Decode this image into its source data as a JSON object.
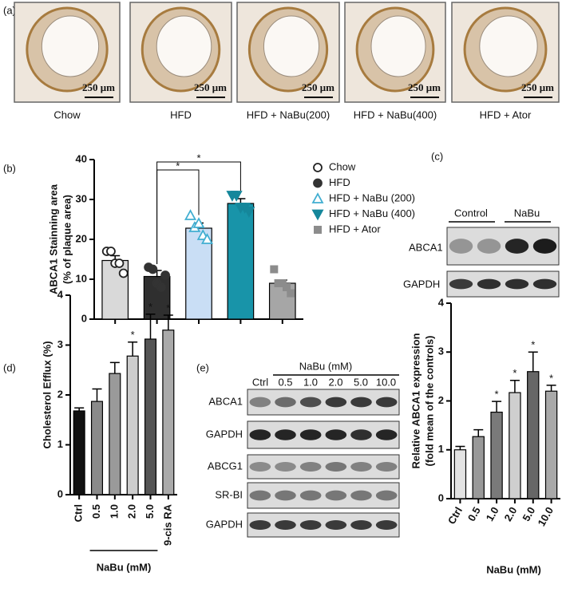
{
  "figure": {
    "panels": [
      "(a)",
      "(b)",
      "(c)",
      "(d)",
      "(e)"
    ],
    "a": {
      "labels": [
        "Chow",
        "HFD",
        "HFD + NaBu(200)",
        "HFD + NaBu(400)",
        "HFD + Ator"
      ],
      "scale": "250 μm"
    },
    "c": {
      "groups": [
        "Control",
        "NaBu"
      ],
      "rows": [
        "ABCA1",
        "GAPDH"
      ]
    },
    "e": {
      "treatment": "NaBu (mM)",
      "lanes": [
        "Ctrl",
        "0.5",
        "1.0",
        "2.0",
        "5.0",
        "10.0"
      ],
      "rows": [
        "ABCA1",
        "GAPDH",
        "ABCG1",
        "SR-BI",
        "GAPDH"
      ]
    }
  },
  "chart_data": [
    {
      "type": "bar",
      "y_label": "ABCA1 Stainning area",
      "y_sublabel": "(% of plaque area)",
      "categories": [
        null,
        null,
        null,
        null,
        null
      ],
      "values": [
        14.7,
        10.7,
        22.8,
        29.0,
        9.0
      ],
      "errors": [
        1.2,
        1.5,
        1.3,
        1.2,
        0.8
      ],
      "points": [
        [
          17,
          17,
          14,
          14,
          11.5
        ],
        [
          13,
          12.5,
          9,
          8,
          11
        ],
        [
          26,
          23,
          24,
          21,
          20
        ],
        [
          31,
          31,
          28,
          28,
          27
        ],
        [
          12.5,
          9,
          9,
          8,
          6.5
        ]
      ],
      "colors": [
        "#d9d9d9",
        "#2f2f2f",
        "#c9def5",
        "#1894a9",
        "#a6a6a6"
      ],
      "markers": [
        "circle-open",
        "circle",
        "triangle-open",
        "triangle-down",
        "square"
      ],
      "marker_colors": [
        "#222222",
        "#333333",
        "#41aed1",
        "#15879b",
        "#8c8c8c"
      ],
      "legend": [
        "Chow",
        "HFD",
        "HFD + NaBu (200)",
        "HFD + NaBu (400)",
        "HFD + Ator"
      ],
      "annotations": [
        "*",
        "*"
      ],
      "ylim": [
        0,
        40
      ],
      "yticks": [
        0,
        10,
        20,
        30,
        40
      ]
    },
    {
      "type": "bar",
      "y_label": "Cholesterol Efflux (%)",
      "x_label": "NaBu (mM)",
      "categories": [
        "Ctrl",
        "0.5",
        "1.0",
        "2.0",
        "5.0",
        "9-cis RA"
      ],
      "values": [
        1.68,
        1.87,
        2.43,
        2.78,
        3.12,
        3.3
      ],
      "errors": [
        0.06,
        0.25,
        0.22,
        0.28,
        0.5,
        0.3
      ],
      "colors": [
        "#111111",
        "#8a8a8a",
        "#9a9a9a",
        "#cccccc",
        "#555555",
        "#aaaaaa"
      ],
      "value_labels": [
        null,
        null,
        null,
        "*",
        "*",
        "*"
      ],
      "ylim": [
        0,
        4
      ],
      "yticks": [
        0,
        1,
        2,
        3,
        4
      ]
    },
    {
      "type": "bar",
      "y_label": "Relative ABCA1 expression",
      "y_sublabel": "(fold mean of the controls)",
      "x_label": "NaBu (mM)",
      "categories": [
        "Ctrl",
        "0.5",
        "1.0",
        "2.0",
        "5.0",
        "10.0"
      ],
      "values": [
        1.0,
        1.27,
        1.77,
        2.17,
        2.6,
        2.2
      ],
      "errors": [
        0.07,
        0.14,
        0.22,
        0.25,
        0.4,
        0.12
      ],
      "colors": [
        "#e3e3e3",
        "#999999",
        "#7a7a7a",
        "#cfcfcf",
        "#666666",
        "#a9a9a9"
      ],
      "value_labels": [
        null,
        null,
        "*",
        "*",
        "*",
        "*"
      ],
      "ylim": [
        0,
        4
      ],
      "yticks": [
        0,
        1,
        2,
        3,
        4
      ]
    }
  ]
}
